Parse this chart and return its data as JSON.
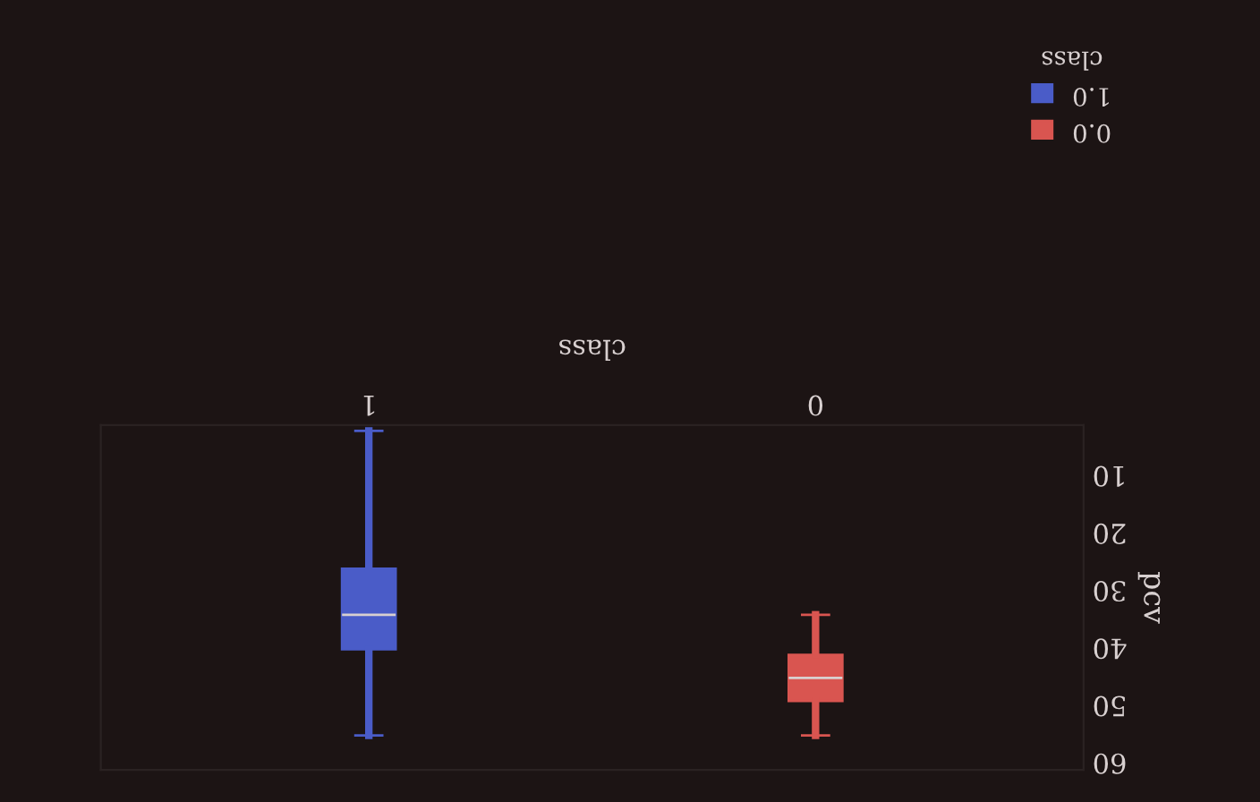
{
  "chart_data": {
    "type": "box",
    "xlabel": "class",
    "ylabel": "pcv",
    "legend_title": "class",
    "categories": [
      "1",
      "0"
    ],
    "series": [
      {
        "name": "1.0",
        "color": "#4a5cc8",
        "boxes": [
          {
            "low": 3,
            "q1": 27,
            "median": 35,
            "q3": 41,
            "high": 56
          },
          null
        ]
      },
      {
        "name": "0.0",
        "color": "#d95550",
        "boxes": [
          null,
          {
            "low": 35,
            "q1": 42,
            "median": 46,
            "q3": 50,
            "high": 56
          }
        ]
      }
    ],
    "ylim": [
      62,
      2
    ],
    "yticks": [
      10,
      20,
      30,
      40,
      50,
      60
    ],
    "grid": false,
    "legend": "top right"
  }
}
